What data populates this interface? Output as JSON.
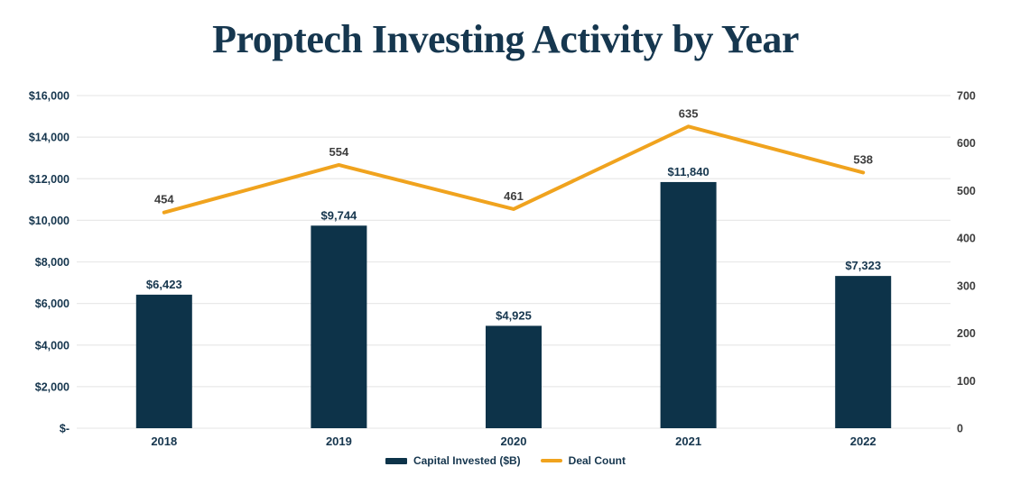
{
  "title": "Proptech Investing Activity by Year",
  "legend": {
    "capital_label": "Capital Invested ($B)",
    "deal_label": "Deal Count"
  },
  "colors": {
    "title": "#16374f",
    "bar": "#0d3349",
    "line": "#f0a31e",
    "grid": "#e9e9e9",
    "navy_text": "#16364e",
    "gray_text": "#3d3d3d",
    "background": "#ffffff"
  },
  "chart_data": {
    "type": "bar",
    "subtype": "bar-and-line-combo",
    "title": "Proptech Investing Activity by Year",
    "categories": [
      "2018",
      "2019",
      "2020",
      "2021",
      "2022"
    ],
    "series": [
      {
        "name": "Capital Invested ($B)",
        "type": "bar",
        "axis": "left",
        "values": [
          6423,
          9744,
          4925,
          11840,
          7323
        ],
        "labels": [
          "$6,423",
          "$9,744",
          "$4,925",
          "$11,840",
          "$7,323"
        ]
      },
      {
        "name": "Deal Count",
        "type": "line",
        "axis": "right",
        "values": [
          454,
          554,
          461,
          635,
          538
        ],
        "labels": [
          "454",
          "554",
          "461",
          "635",
          "538"
        ]
      }
    ],
    "left_axis": {
      "min": 0,
      "max": 16000,
      "tick_values": [
        16000,
        14000,
        12000,
        10000,
        8000,
        6000,
        4000,
        2000,
        0
      ],
      "tick_labels": [
        "$16,000",
        "$14,000",
        "$12,000",
        "$10,000",
        "$8,000",
        "$6,000",
        "$4,000",
        "$2,000",
        "$-"
      ]
    },
    "right_axis": {
      "min": 0,
      "max": 700,
      "tick_values": [
        700,
        600,
        500,
        400,
        300,
        200,
        100,
        0
      ],
      "tick_labels": [
        "700",
        "600",
        "500",
        "400",
        "300",
        "200",
        "100",
        "0"
      ]
    },
    "grid": true,
    "legend_position": "bottom"
  }
}
